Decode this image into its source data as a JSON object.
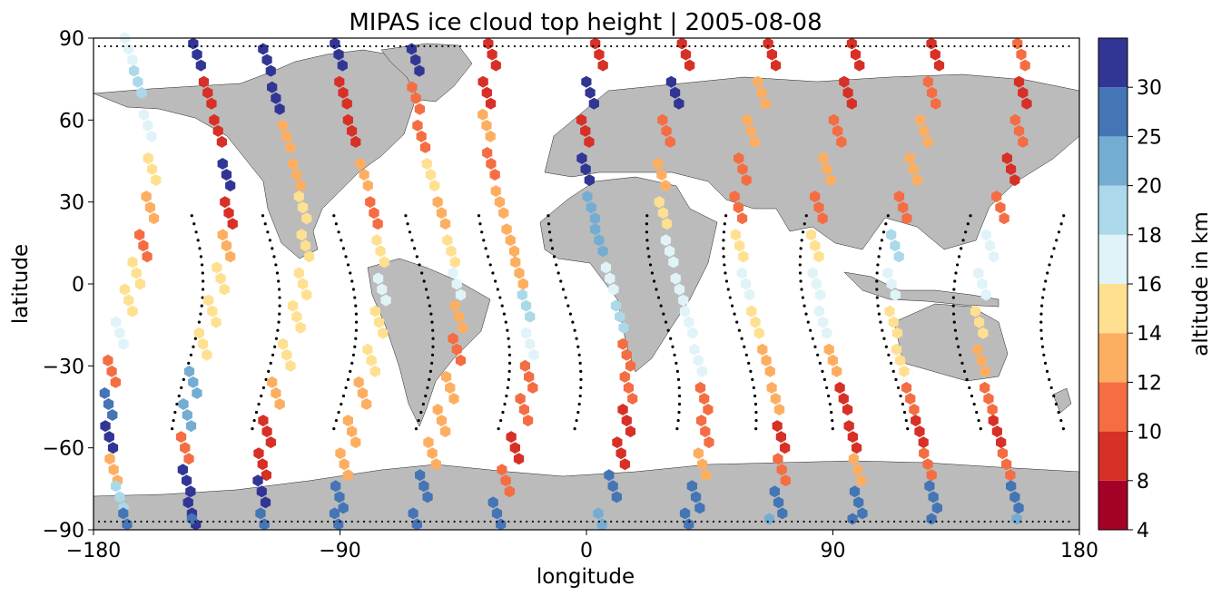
{
  "chart_data": {
    "type": "scatter",
    "title": "MIPAS ice cloud top height | 2005-08-08",
    "xlabel": "longitude",
    "ylabel": "latitude",
    "xlim": [
      -180,
      180
    ],
    "ylim": [
      -90,
      90
    ],
    "x_ticks": [
      -180,
      -90,
      0,
      90,
      180
    ],
    "y_ticks": [
      90,
      60,
      30,
      0,
      -30,
      -60,
      -90
    ],
    "x_tick_labels": [
      "−180",
      "−90",
      "0",
      "90",
      "180"
    ],
    "y_tick_labels": [
      "90",
      "60",
      "30",
      "0",
      "−30",
      "−60",
      "−90"
    ],
    "grid": false,
    "basemap": "world land masses in grey (#bbbbbb) with coastlines and borders",
    "colorbar": {
      "label": "altitude in km",
      "placement": "right",
      "bounds": [
        4,
        8,
        10,
        12,
        14,
        16,
        18,
        20,
        25,
        30
      ],
      "tick_labels": [
        "4",
        "8",
        "10",
        "12",
        "14",
        "16",
        "18",
        "20",
        "25",
        "30"
      ],
      "colors": [
        "#a50026",
        "#d73027",
        "#f46d43",
        "#fdae61",
        "#fee090",
        "#e0f3f8",
        "#abd9e9",
        "#74add1",
        "#4575b4",
        "#313695"
      ]
    },
    "marker_colors": {
      "4-8": "#a50026",
      "8-10": "#d73027",
      "10-12": "#f46d43",
      "12-14": "#fdae61",
      "14-16": "#fee090",
      "16-18": "#e0f3f8",
      "18-20": "#abd9e9",
      "20-25": "#74add1",
      "25-30": "#4575b4",
      "30+": "#313695"
    },
    "marker_shape": "hexagon",
    "no_cloud_marker": "black dot",
    "orbits": [
      {
        "lon0": -168,
        "segments": [
          [
            90,
            5
          ],
          [
            78,
            6
          ],
          [
            62,
            5
          ],
          [
            46,
            4
          ],
          [
            32,
            3
          ],
          [
            18,
            2
          ],
          [
            8,
            4
          ],
          [
            -2,
            4
          ],
          [
            -14,
            5
          ],
          [
            -28,
            2
          ],
          [
            -40,
            8
          ],
          [
            -52,
            9
          ],
          [
            -64,
            3
          ],
          [
            -74,
            6
          ],
          [
            -84,
            8
          ]
        ]
      },
      {
        "lon0": -140,
        "segments": [
          [
            88,
            9
          ],
          [
            74,
            1
          ],
          [
            60,
            1
          ],
          [
            44,
            9
          ],
          [
            30,
            1
          ],
          [
            18,
            3
          ],
          [
            6,
            4
          ],
          [
            -6,
            4
          ],
          [
            -18,
            4
          ],
          [
            -32,
            7
          ],
          [
            -44,
            7
          ],
          [
            -56,
            2
          ],
          [
            -68,
            9
          ],
          [
            -80,
            9
          ],
          [
            -86,
            8
          ]
        ]
      },
      {
        "lon0": -112,
        "segments": [
          [
            86,
            9
          ],
          [
            72,
            9
          ],
          [
            58,
            3
          ],
          [
            44,
            3
          ],
          [
            32,
            4
          ],
          [
            18,
            4
          ],
          [
            4,
            4
          ],
          [
            -8,
            4
          ],
          [
            -22,
            4
          ],
          [
            -36,
            3
          ],
          [
            -50,
            1
          ],
          [
            -62,
            1
          ],
          [
            -72,
            9
          ],
          [
            -84,
            8
          ]
        ]
      },
      {
        "lon0": -84,
        "segments": [
          [
            88,
            9
          ],
          [
            74,
            1
          ],
          [
            60,
            1
          ],
          [
            44,
            3
          ],
          [
            30,
            2
          ],
          [
            16,
            4
          ],
          [
            2,
            5
          ],
          [
            -10,
            4
          ],
          [
            -24,
            4
          ],
          [
            -36,
            3
          ],
          [
            -50,
            3
          ],
          [
            -62,
            3
          ],
          [
            -74,
            8
          ],
          [
            -84,
            8
          ]
        ]
      },
      {
        "lon0": -56,
        "segments": [
          [
            86,
            9
          ],
          [
            72,
            2
          ],
          [
            58,
            2
          ],
          [
            44,
            4
          ],
          [
            30,
            3
          ],
          [
            16,
            4
          ],
          [
            4,
            5
          ],
          [
            -8,
            3
          ],
          [
            -20,
            2
          ],
          [
            -34,
            3
          ],
          [
            -46,
            3
          ],
          [
            -58,
            3
          ],
          [
            -70,
            8
          ],
          [
            -84,
            8
          ]
        ]
      },
      {
        "lon0": -30,
        "segments": [
          [
            88,
            1
          ],
          [
            74,
            1
          ],
          [
            62,
            3
          ],
          [
            48,
            2
          ],
          [
            34,
            3
          ],
          [
            20,
            3
          ],
          [
            8,
            3
          ],
          [
            -4,
            6
          ],
          [
            -18,
            5
          ],
          [
            -30,
            2
          ],
          [
            -42,
            2
          ],
          [
            -56,
            1
          ],
          [
            -68,
            2
          ],
          [
            -80,
            8
          ]
        ]
      },
      {
        "lon0": 6,
        "segments": [
          [
            88,
            1
          ],
          [
            74,
            9
          ],
          [
            60,
            1
          ],
          [
            46,
            9
          ],
          [
            32,
            7
          ],
          [
            20,
            7
          ],
          [
            6,
            5
          ],
          [
            -8,
            6
          ],
          [
            -22,
            2
          ],
          [
            -34,
            2
          ],
          [
            -46,
            1
          ],
          [
            -58,
            1
          ],
          [
            -70,
            8
          ],
          [
            -84,
            7
          ]
        ]
      },
      {
        "lon0": 34,
        "segments": [
          [
            88,
            1
          ],
          [
            74,
            9
          ],
          [
            60,
            2
          ],
          [
            44,
            3
          ],
          [
            30,
            4
          ],
          [
            16,
            5
          ],
          [
            2,
            5
          ],
          [
            -10,
            5
          ],
          [
            -24,
            5
          ],
          [
            -38,
            2
          ],
          [
            -50,
            2
          ],
          [
            -62,
            3
          ],
          [
            -74,
            8
          ],
          [
            -84,
            8
          ]
        ]
      },
      {
        "lon0": 62,
        "segments": [
          [
            88,
            1
          ],
          [
            74,
            3
          ],
          [
            60,
            3
          ],
          [
            46,
            2
          ],
          [
            32,
            2
          ],
          [
            18,
            4
          ],
          [
            4,
            5
          ],
          [
            -10,
            4
          ],
          [
            -24,
            3
          ],
          [
            -38,
            3
          ],
          [
            -52,
            1
          ],
          [
            -64,
            2
          ],
          [
            -76,
            8
          ],
          [
            -86,
            7
          ]
        ]
      },
      {
        "lon0": 90,
        "segments": [
          [
            88,
            1
          ],
          [
            74,
            1
          ],
          [
            60,
            2
          ],
          [
            46,
            3
          ],
          [
            32,
            2
          ],
          [
            18,
            4
          ],
          [
            4,
            5
          ],
          [
            -10,
            5
          ],
          [
            -24,
            3
          ],
          [
            -38,
            1
          ],
          [
            -52,
            1
          ],
          [
            -64,
            3
          ],
          [
            -76,
            8
          ],
          [
            -86,
            8
          ]
        ]
      },
      {
        "lon0": 118,
        "segments": [
          [
            88,
            1
          ],
          [
            74,
            2
          ],
          [
            60,
            3
          ],
          [
            46,
            3
          ],
          [
            32,
            2
          ],
          [
            18,
            6
          ],
          [
            4,
            5
          ],
          [
            -10,
            4
          ],
          [
            -24,
            4
          ],
          [
            -38,
            2
          ],
          [
            -50,
            1
          ],
          [
            -62,
            2
          ],
          [
            -74,
            8
          ],
          [
            -86,
            8
          ]
        ]
      },
      {
        "lon0": 150,
        "segments": [
          [
            88,
            2
          ],
          [
            74,
            1
          ],
          [
            60,
            2
          ],
          [
            46,
            1
          ],
          [
            32,
            2
          ],
          [
            18,
            5
          ],
          [
            4,
            5
          ],
          [
            -10,
            4
          ],
          [
            -24,
            3
          ],
          [
            -38,
            2
          ],
          [
            -50,
            1
          ],
          [
            -62,
            2
          ],
          [
            -74,
            8
          ],
          [
            -86,
            7
          ]
        ]
      }
    ]
  }
}
